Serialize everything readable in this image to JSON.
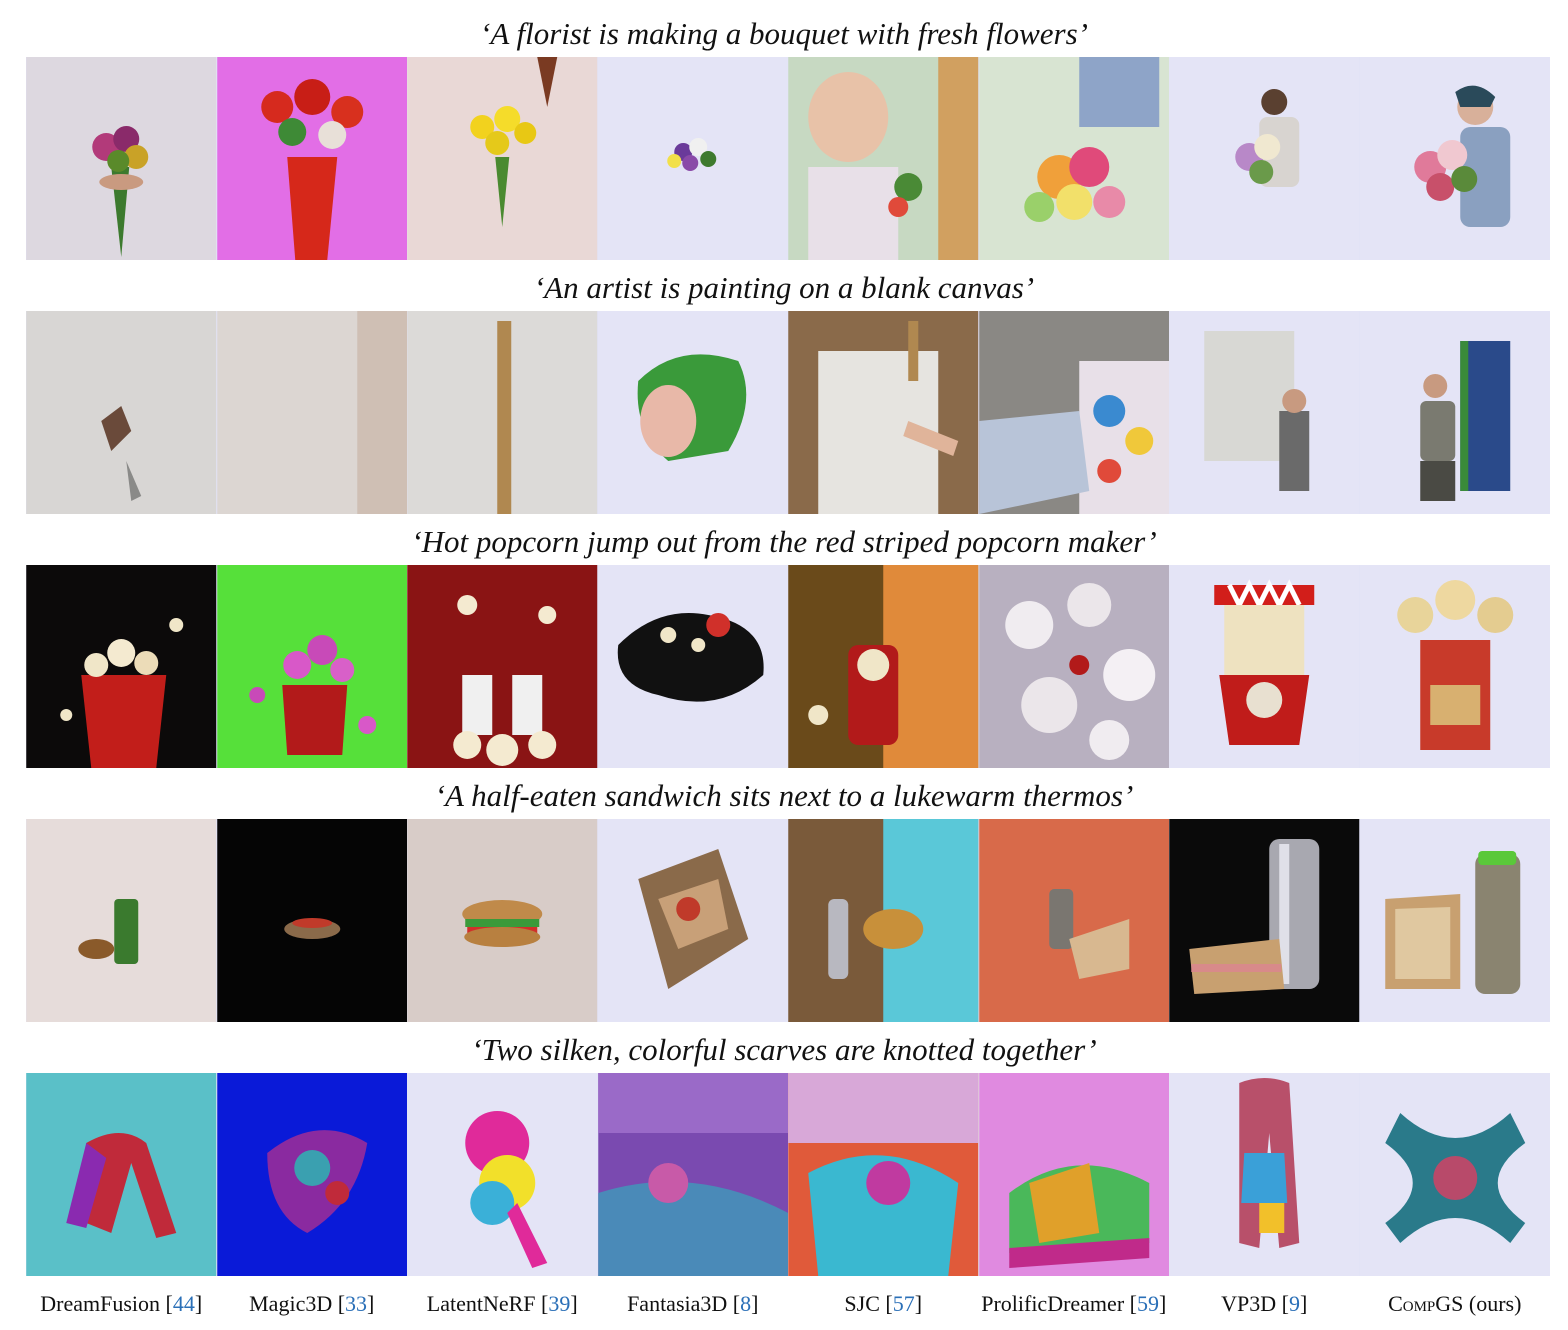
{
  "rows": [
    {
      "prompt": "‘A florist is making a bouquet with fresh flowers’"
    },
    {
      "prompt": "‘An artist is painting on a blank canvas’"
    },
    {
      "prompt": "‘Hot popcorn jump out from the red striped popcorn maker’"
    },
    {
      "prompt": "‘A half-eaten sandwich sits next to a lukewarm thermos’"
    },
    {
      "prompt": "‘Two silken, colorful scarves are knotted together’"
    }
  ],
  "methods": [
    {
      "name": "DreamFusion ",
      "ref": "44"
    },
    {
      "name": "Magic3D ",
      "ref": "33"
    },
    {
      "name": "LatentNeRF ",
      "ref": "39"
    },
    {
      "name": "Fantasia3D ",
      "ref": "8"
    },
    {
      "name": "SJC ",
      "ref": "57"
    },
    {
      "name": "ProlificDreamer ",
      "ref": "59"
    },
    {
      "name": "VP3D ",
      "ref": "9"
    },
    {
      "name_sc": "CompGS",
      "suffix": " (ours)"
    }
  ],
  "colors": {
    "strip_bg": "#e2e3f7",
    "ref_link": "#2a6fb7"
  }
}
